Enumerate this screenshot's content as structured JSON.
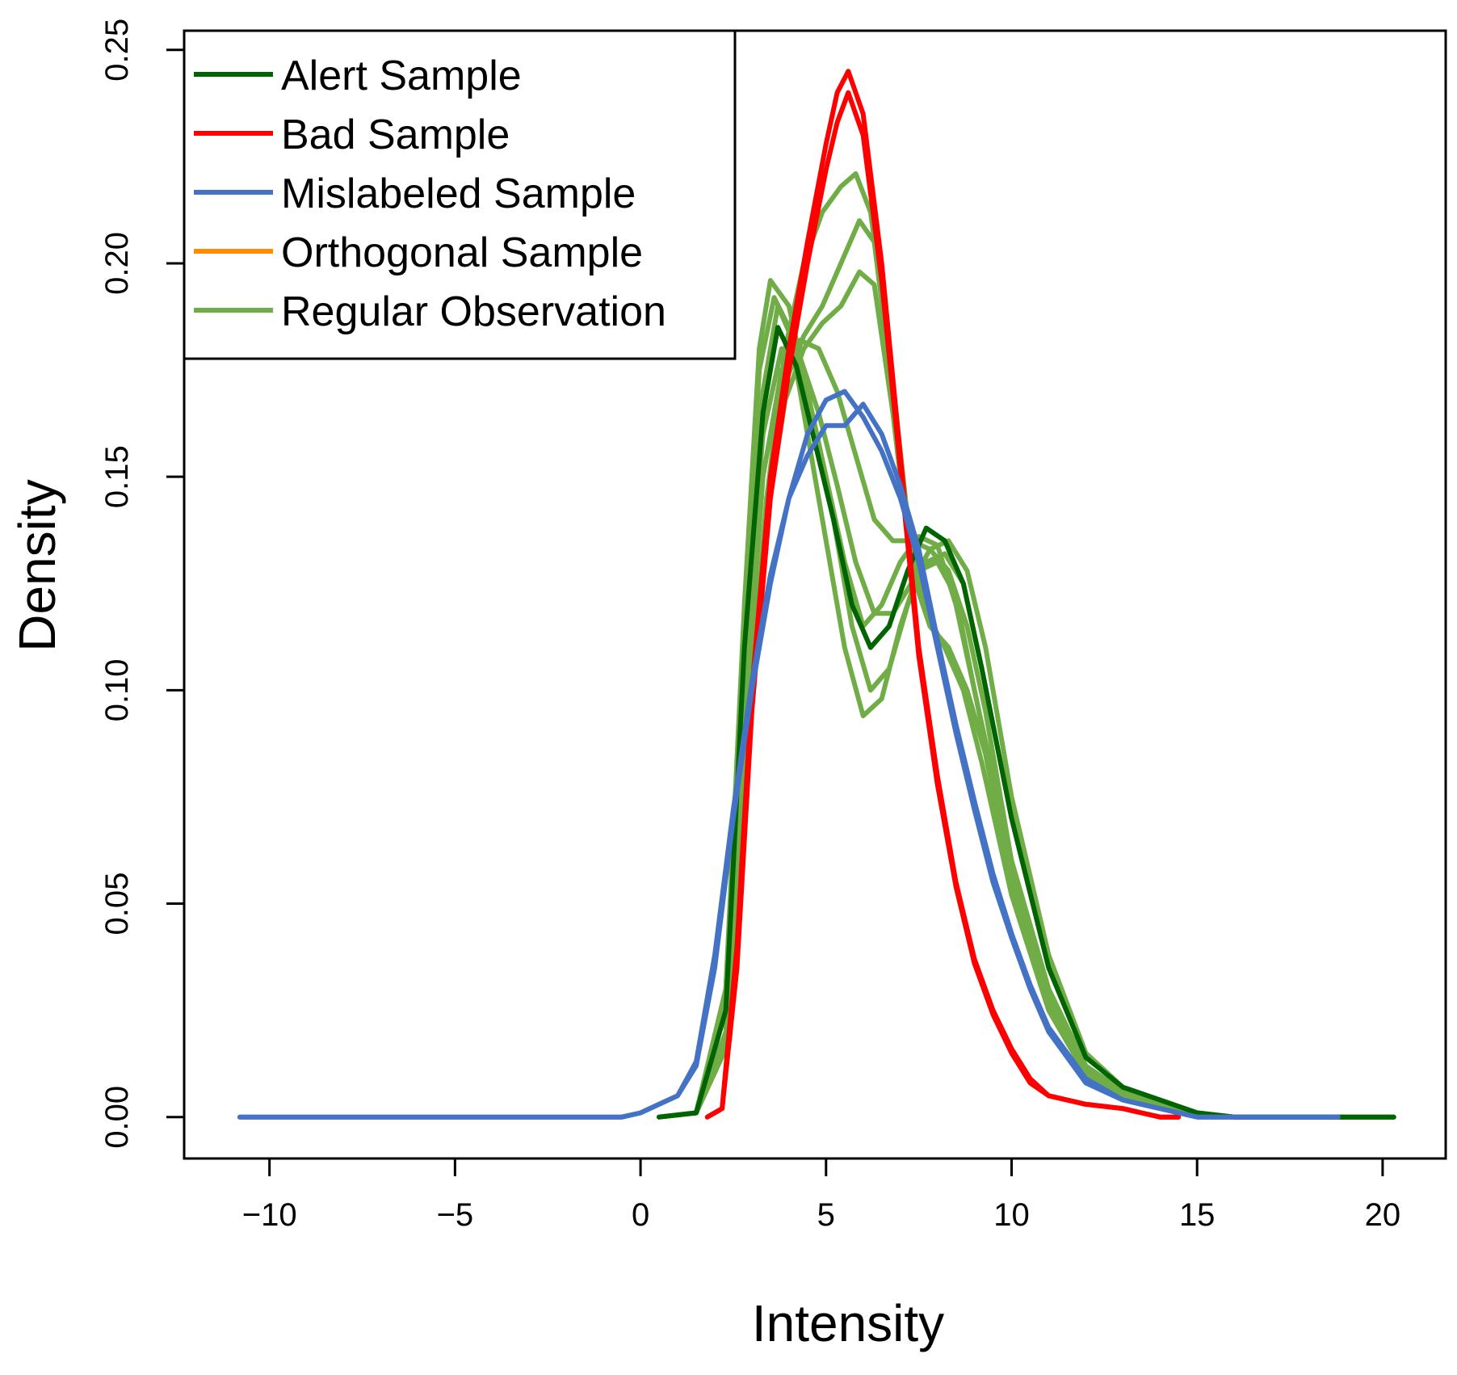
{
  "chart_data": {
    "type": "line",
    "title": "",
    "xlabel": "Intensity",
    "ylabel": "Density",
    "xlim": [
      -12.3,
      21.7
    ],
    "ylim": [
      -0.0097,
      0.2545
    ],
    "x_ticks": [
      -10,
      -5,
      0,
      5,
      10,
      15,
      20
    ],
    "x_tick_labels": [
      "−10",
      "−5",
      "0",
      "5",
      "10",
      "15",
      "20"
    ],
    "y_ticks": [
      0.0,
      0.05,
      0.1,
      0.15,
      0.2,
      0.25
    ],
    "y_tick_labels": [
      "0.00",
      "0.05",
      "0.10",
      "0.15",
      "0.20",
      "0.25"
    ],
    "grid": false,
    "legend_position": "top-left",
    "legend": [
      {
        "label": "Alert Sample",
        "color": "#006400"
      },
      {
        "label": "Bad Sample",
        "color": "#ff0000"
      },
      {
        "label": "Mislabeled Sample",
        "color": "#4472c4"
      },
      {
        "label": "Orthogonal Sample",
        "color": "#ff8c00"
      },
      {
        "label": "Regular Observation",
        "color": "#70ad47"
      }
    ],
    "series": [
      {
        "name": "Regular Observation",
        "color": "#70ad47",
        "x": [
          0.5,
          1.5,
          2.3,
          2.8,
          3.2,
          3.5,
          4.0,
          4.5,
          5.0,
          5.5,
          6.0,
          6.5,
          7.0,
          7.5,
          8.0,
          8.5,
          9.0,
          10.0,
          11.0,
          12.0,
          13.0,
          14.0,
          15.0,
          16.0,
          18.0,
          20.3
        ],
        "y": [
          0.0,
          0.001,
          0.03,
          0.12,
          0.18,
          0.196,
          0.19,
          0.17,
          0.15,
          0.13,
          0.115,
          0.12,
          0.13,
          0.136,
          0.134,
          0.12,
          0.1,
          0.06,
          0.03,
          0.012,
          0.006,
          0.004,
          0.001,
          0.0,
          0.0,
          0.0
        ]
      },
      {
        "name": "Regular Observation",
        "color": "#70ad47",
        "x": [
          0.5,
          1.5,
          2.3,
          2.8,
          3.3,
          3.7,
          4.2,
          4.7,
          5.2,
          5.7,
          6.2,
          6.7,
          7.2,
          7.7,
          8.2,
          8.7,
          9.2,
          10.0,
          11.0,
          12.0,
          13.0,
          14.0,
          15.0,
          16.0,
          18.0,
          20.3
        ],
        "y": [
          0.0,
          0.001,
          0.025,
          0.11,
          0.17,
          0.19,
          0.18,
          0.16,
          0.14,
          0.115,
          0.1,
          0.105,
          0.12,
          0.13,
          0.132,
          0.125,
          0.105,
          0.07,
          0.035,
          0.014,
          0.007,
          0.004,
          0.001,
          0.0,
          0.0,
          0.0
        ]
      },
      {
        "name": "Regular Observation",
        "color": "#70ad47",
        "x": [
          0.5,
          1.5,
          2.3,
          2.8,
          3.2,
          3.6,
          4.0,
          4.5,
          5.0,
          5.5,
          6.0,
          6.5,
          7.0,
          7.5,
          8.0,
          8.5,
          9.0,
          10.0,
          11.0,
          12.0,
          13.0,
          14.0,
          15.0,
          16.0,
          18.0,
          20.3
        ],
        "y": [
          0.0,
          0.001,
          0.03,
          0.115,
          0.175,
          0.192,
          0.185,
          0.16,
          0.135,
          0.11,
          0.094,
          0.098,
          0.115,
          0.128,
          0.13,
          0.122,
          0.1,
          0.058,
          0.028,
          0.011,
          0.006,
          0.003,
          0.001,
          0.0,
          0.0,
          0.0
        ]
      },
      {
        "name": "Regular Observation",
        "color": "#70ad47",
        "x": [
          0.5,
          1.5,
          2.3,
          2.8,
          3.3,
          3.8,
          4.3,
          4.8,
          5.3,
          5.8,
          6.3,
          6.8,
          7.3,
          7.8,
          8.3,
          8.8,
          9.3,
          10.0,
          11.0,
          12.0,
          13.0,
          14.0,
          15.0,
          16.0,
          18.0,
          20.3
        ],
        "y": [
          0.0,
          0.001,
          0.028,
          0.105,
          0.16,
          0.18,
          0.178,
          0.165,
          0.148,
          0.13,
          0.118,
          0.118,
          0.125,
          0.133,
          0.135,
          0.128,
          0.11,
          0.075,
          0.038,
          0.015,
          0.007,
          0.004,
          0.001,
          0.0,
          0.0,
          0.0
        ]
      },
      {
        "name": "Regular Observation",
        "color": "#70ad47",
        "x": [
          0.5,
          1.5,
          2.3,
          2.8,
          3.3,
          3.8,
          4.3,
          4.8,
          5.3,
          5.8,
          6.3,
          6.8,
          7.3,
          7.8,
          8.3,
          8.8,
          9.3,
          10.0,
          11.0,
          12.0,
          13.0,
          14.0,
          15.0,
          16.0,
          18.0,
          20.3
        ],
        "y": [
          0.0,
          0.001,
          0.02,
          0.09,
          0.15,
          0.175,
          0.182,
          0.18,
          0.17,
          0.155,
          0.14,
          0.135,
          0.135,
          0.133,
          0.128,
          0.115,
          0.095,
          0.06,
          0.03,
          0.012,
          0.006,
          0.003,
          0.001,
          0.0,
          0.0,
          0.0
        ]
      },
      {
        "name": "Regular Observation",
        "color": "#70ad47",
        "x": [
          0.5,
          1.5,
          2.4,
          2.9,
          3.4,
          3.9,
          4.4,
          4.9,
          5.4,
          5.9,
          6.3,
          6.8,
          7.3,
          7.8,
          8.3,
          8.8,
          9.3,
          10.0,
          11.0,
          12.0,
          13.0,
          14.0,
          15.0,
          16.0,
          18.0,
          20.3
        ],
        "y": [
          0.0,
          0.001,
          0.02,
          0.09,
          0.145,
          0.172,
          0.183,
          0.19,
          0.2,
          0.21,
          0.205,
          0.17,
          0.13,
          0.115,
          0.11,
          0.1,
          0.085,
          0.055,
          0.027,
          0.011,
          0.005,
          0.003,
          0.001,
          0.0,
          0.0,
          0.0
        ]
      },
      {
        "name": "Regular Observation",
        "color": "#70ad47",
        "x": [
          0.5,
          1.5,
          2.4,
          2.9,
          3.4,
          3.9,
          4.4,
          4.9,
          5.4,
          5.8,
          6.2,
          6.7,
          7.2,
          7.7,
          8.2,
          8.7,
          9.2,
          10.0,
          11.0,
          12.0,
          13.0,
          14.0,
          15.0,
          16.0,
          18.0,
          20.3
        ],
        "y": [
          0.0,
          0.001,
          0.018,
          0.085,
          0.145,
          0.18,
          0.2,
          0.212,
          0.218,
          0.221,
          0.212,
          0.18,
          0.14,
          0.118,
          0.11,
          0.1,
          0.083,
          0.052,
          0.025,
          0.01,
          0.005,
          0.003,
          0.001,
          0.0,
          0.0,
          0.0
        ]
      },
      {
        "name": "Regular Observation",
        "color": "#70ad47",
        "x": [
          0.5,
          1.5,
          2.4,
          2.9,
          3.4,
          3.9,
          4.4,
          4.9,
          5.4,
          5.9,
          6.3,
          6.8,
          7.3,
          7.8,
          8.3,
          8.8,
          9.3,
          10.0,
          11.0,
          12.0,
          13.0,
          14.0,
          15.0,
          16.0,
          18.0,
          20.3
        ],
        "y": [
          0.0,
          0.001,
          0.018,
          0.085,
          0.14,
          0.168,
          0.18,
          0.186,
          0.19,
          0.198,
          0.195,
          0.165,
          0.128,
          0.115,
          0.11,
          0.1,
          0.085,
          0.054,
          0.026,
          0.011,
          0.005,
          0.003,
          0.001,
          0.0,
          0.0,
          0.0
        ]
      },
      {
        "name": "Alert Sample",
        "color": "#006400",
        "x": [
          0.5,
          1.5,
          2.3,
          2.8,
          3.3,
          3.7,
          4.2,
          4.7,
          5.2,
          5.7,
          6.2,
          6.7,
          7.2,
          7.7,
          8.2,
          8.7,
          9.2,
          10.0,
          11.0,
          12.0,
          13.0,
          14.0,
          15.0,
          16.0,
          18.0,
          20.3
        ],
        "y": [
          0.0,
          0.001,
          0.025,
          0.11,
          0.165,
          0.185,
          0.176,
          0.158,
          0.14,
          0.12,
          0.11,
          0.115,
          0.128,
          0.138,
          0.135,
          0.125,
          0.105,
          0.07,
          0.035,
          0.014,
          0.007,
          0.004,
          0.001,
          0.0,
          0.0,
          0.0
        ]
      },
      {
        "name": "Bad Sample",
        "color": "#ff0000",
        "x": [
          1.8,
          2.2,
          2.6,
          3.0,
          3.5,
          4.0,
          4.5,
          5.0,
          5.3,
          5.6,
          6.0,
          6.5,
          7.0,
          7.5,
          8.0,
          8.5,
          9.0,
          9.5,
          10.0,
          10.5,
          11.0,
          12.0,
          13.0,
          13.5,
          14.0,
          14.5
        ],
        "y": [
          0.0,
          0.002,
          0.04,
          0.1,
          0.15,
          0.18,
          0.205,
          0.228,
          0.24,
          0.245,
          0.235,
          0.2,
          0.155,
          0.11,
          0.08,
          0.055,
          0.037,
          0.025,
          0.016,
          0.009,
          0.005,
          0.003,
          0.002,
          0.001,
          0.0,
          0.0
        ]
      },
      {
        "name": "Bad Sample",
        "color": "#ff0000",
        "x": [
          1.8,
          2.2,
          2.6,
          3.0,
          3.5,
          4.0,
          4.5,
          5.0,
          5.3,
          5.6,
          6.0,
          6.5,
          7.0,
          7.5,
          8.0,
          8.5,
          9.0,
          9.5,
          10.0,
          10.5,
          11.0,
          12.0,
          13.0,
          13.5,
          14.0,
          14.5
        ],
        "y": [
          0.0,
          0.002,
          0.035,
          0.095,
          0.145,
          0.175,
          0.2,
          0.222,
          0.233,
          0.24,
          0.23,
          0.196,
          0.152,
          0.108,
          0.078,
          0.054,
          0.036,
          0.024,
          0.015,
          0.008,
          0.005,
          0.003,
          0.002,
          0.001,
          0.0,
          0.0
        ]
      },
      {
        "name": "Mislabeled Sample",
        "color": "#4472c4",
        "x": [
          -10.8,
          -8.0,
          -5.0,
          -2.0,
          -0.5,
          0.0,
          0.5,
          1.0,
          1.5,
          2.0,
          2.5,
          3.0,
          3.5,
          4.0,
          4.5,
          5.0,
          5.5,
          6.0,
          6.5,
          7.0,
          7.5,
          8.0,
          8.5,
          9.0,
          9.5,
          10.0,
          10.5,
          11.0,
          12.0,
          13.0,
          14.0,
          15.0,
          16.0,
          18.8
        ],
        "y": [
          0.0,
          0.0,
          0.0,
          0.0,
          0.0,
          0.001,
          0.003,
          0.005,
          0.012,
          0.035,
          0.07,
          0.1,
          0.125,
          0.145,
          0.16,
          0.168,
          0.17,
          0.164,
          0.156,
          0.145,
          0.13,
          0.11,
          0.09,
          0.072,
          0.055,
          0.042,
          0.03,
          0.02,
          0.008,
          0.004,
          0.002,
          0.0,
          0.0,
          0.0
        ]
      },
      {
        "name": "Mislabeled Sample",
        "color": "#4472c4",
        "x": [
          -10.8,
          -8.0,
          -5.0,
          -2.0,
          -0.5,
          0.0,
          0.5,
          1.0,
          1.5,
          2.0,
          2.5,
          3.0,
          3.5,
          4.0,
          4.5,
          5.0,
          5.5,
          6.0,
          6.5,
          7.0,
          7.5,
          8.0,
          8.5,
          9.0,
          9.5,
          10.0,
          10.5,
          11.0,
          12.0,
          13.0,
          14.0,
          15.0,
          16.0,
          18.8
        ],
        "y": [
          0.0,
          0.0,
          0.0,
          0.0,
          0.0,
          0.001,
          0.003,
          0.005,
          0.013,
          0.038,
          0.072,
          0.102,
          0.127,
          0.145,
          0.155,
          0.162,
          0.162,
          0.167,
          0.16,
          0.148,
          0.133,
          0.112,
          0.092,
          0.074,
          0.057,
          0.043,
          0.031,
          0.021,
          0.009,
          0.004,
          0.002,
          0.0,
          0.0,
          0.0
        ]
      }
    ]
  }
}
